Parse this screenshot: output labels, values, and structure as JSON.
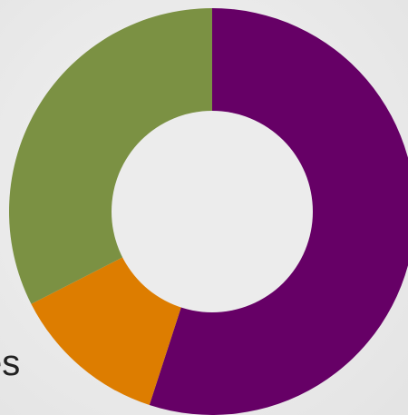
{
  "chart_data": {
    "type": "pie",
    "variant": "donut",
    "slices": [
      {
        "value": 55,
        "color": "#660066"
      },
      {
        "value": 12.5,
        "color": "#dd7d00"
      },
      {
        "value": 32.5,
        "color": "#7b9143"
      }
    ],
    "start_at": "top",
    "direction": "clockwise",
    "title": "",
    "legend": "none"
  },
  "background_label": "es",
  "colors": {
    "background": "#e9e9e9",
    "hole": "#ececec",
    "text": "#222222"
  }
}
